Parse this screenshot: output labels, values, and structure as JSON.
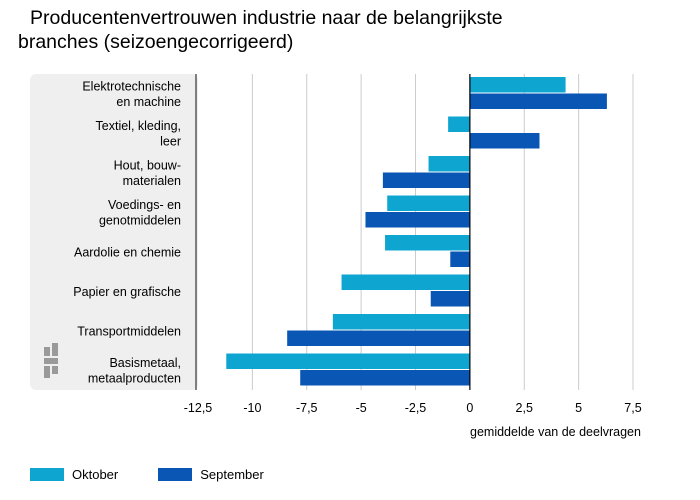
{
  "title_line1": "Producentenvertrouwen industrie naar de belangrijkste",
  "title_line2": "branches (seizoengecorrigeerd)",
  "colors": {
    "oktober": "#0ea5d0",
    "september": "#0a56b4",
    "panel": "#efefef",
    "grid": "#cccccc",
    "logo": "#9a9a9a"
  },
  "chart_data": {
    "type": "bar",
    "orientation": "horizontal",
    "categories": [
      [
        "Elektrotechnische",
        "en machine"
      ],
      [
        "Textiel, kleding,",
        "leer"
      ],
      [
        "Hout, bouw-",
        "materialen"
      ],
      [
        "Voedings- en",
        "genotmiddelen"
      ],
      [
        "Aardolie en chemie"
      ],
      [
        "Papier en grafische"
      ],
      [
        "Transportmiddelen"
      ],
      [
        "Basismetaal,",
        "metaalproducten"
      ]
    ],
    "series": [
      {
        "name": "Oktober",
        "color": "#0ea5d0",
        "values": [
          4.4,
          -1.0,
          -1.9,
          -3.8,
          -3.9,
          -5.9,
          -6.3,
          -11.2
        ]
      },
      {
        "name": "September",
        "color": "#0a56b4",
        "values": [
          6.3,
          3.2,
          -4.0,
          -4.8,
          -0.9,
          -1.8,
          -8.4,
          -7.8
        ]
      }
    ],
    "xlim": [
      -12.5,
      7.5
    ],
    "xticks": [
      -12.5,
      -10,
      -7.5,
      -5,
      -2.5,
      0,
      2.5,
      5,
      7.5
    ],
    "xtick_labels": [
      "-12,5",
      "-10",
      "-7,5",
      "-5",
      "-2,5",
      "0",
      "2,5",
      "5",
      "7,5"
    ],
    "xlabel": "gemiddelde van de deelvragen",
    "grid": true,
    "legend_position": "bottom-left"
  }
}
